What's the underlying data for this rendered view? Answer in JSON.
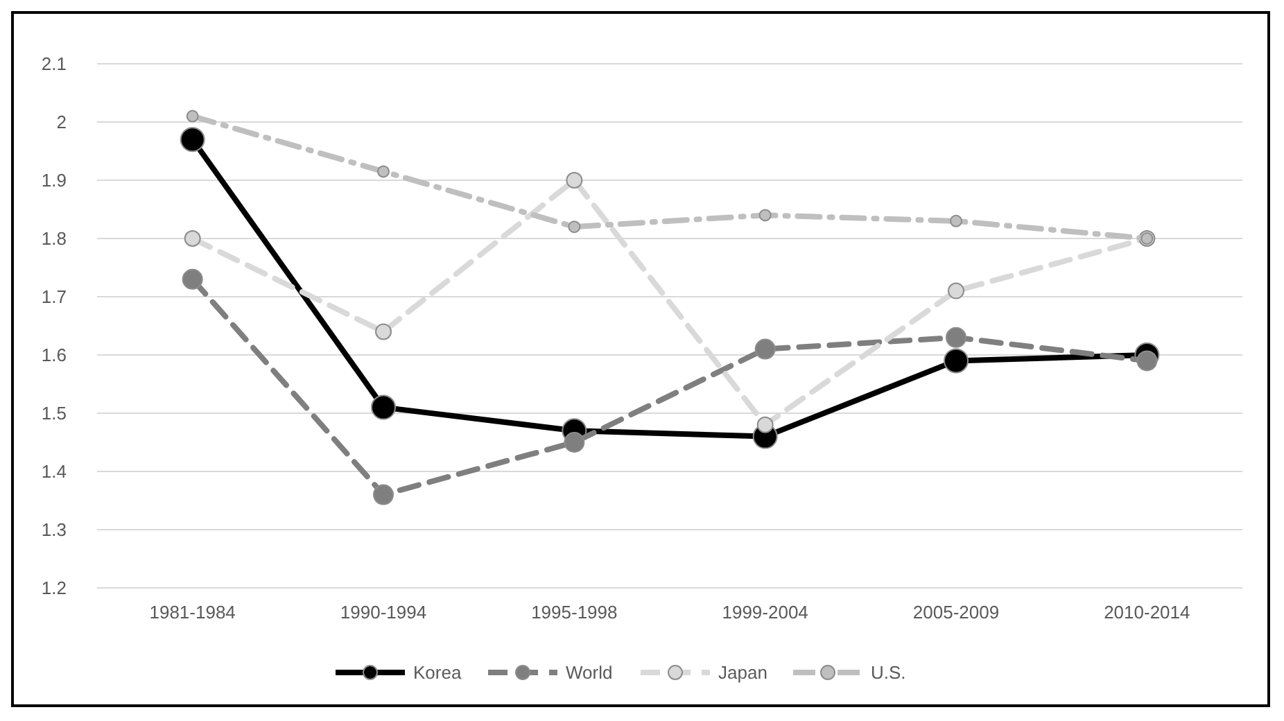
{
  "chart_data": {
    "type": "line",
    "categories": [
      "1981-1984",
      "1990-1994",
      "1995-1998",
      "1999-2004",
      "2005-2009",
      "2010-2014"
    ],
    "ylim": [
      1.2,
      2.1
    ],
    "yticks": [
      1.2,
      1.3,
      1.4,
      1.5,
      1.6,
      1.7,
      1.8,
      1.9,
      2,
      2.1
    ],
    "grid": "y",
    "legend": "bottom",
    "marker": "circle",
    "series": [
      {
        "name": "Korea",
        "color": "#000000",
        "line_style": "solid",
        "values": [
          1.97,
          1.51,
          1.47,
          1.46,
          1.59,
          1.6
        ]
      },
      {
        "name": "World",
        "color": "#7f7f7f",
        "line_style": "dashed",
        "values": [
          1.73,
          1.36,
          1.45,
          1.61,
          1.63,
          1.59
        ]
      },
      {
        "name": "Japan",
        "color": "#d9d9d9",
        "line_style": "dashed",
        "values": [
          1.8,
          1.64,
          1.9,
          1.48,
          1.71,
          1.8
        ]
      },
      {
        "name": "U.S.",
        "color": "#bfbfbf",
        "line_style": "dashdot",
        "values": [
          2.01,
          1.915,
          1.82,
          1.84,
          1.83,
          1.8
        ]
      }
    ]
  }
}
